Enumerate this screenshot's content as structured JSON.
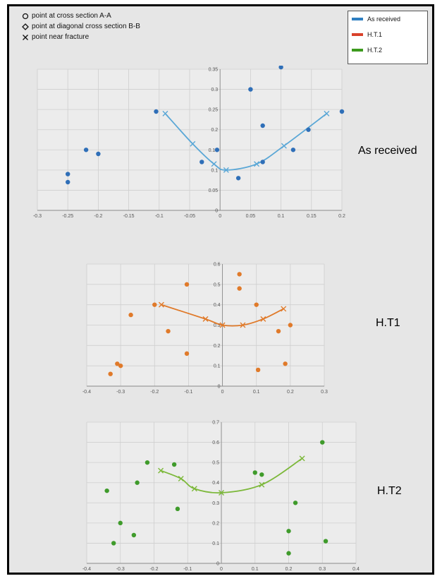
{
  "symbol_key": [
    {
      "glyph": "circle",
      "text": "point at cross section A-A"
    },
    {
      "glyph": "diamond",
      "text": "point at  diagonal cross section B-B"
    },
    {
      "glyph": "cross",
      "text": "point near fracture"
    }
  ],
  "legend": [
    {
      "label": "As received",
      "color": "#2f7fc1"
    },
    {
      "label": "H.T.1",
      "color": "#d9422b"
    },
    {
      "label": "H.T.2",
      "color": "#3d9a1e"
    }
  ],
  "chart_data": [
    {
      "type": "scatter",
      "side_label": "As received",
      "color": "#2f6fb8",
      "line_color": "#5aa7d6",
      "xlim": [
        -0.3,
        0.2
      ],
      "ylim": [
        0,
        0.35
      ],
      "x_ticks": [
        "-0.3",
        "-0.25",
        "-0.2",
        "-0.15",
        "-0.1",
        "-0.05",
        "0",
        "0.05",
        "0.1",
        "0.15",
        "0.2"
      ],
      "y_ticks": [
        "0",
        "0.05",
        "0.1",
        "0.15",
        "0.2",
        "0.25",
        "0.3",
        "0.35"
      ],
      "points": [
        {
          "x": -0.25,
          "y": 0.09
        },
        {
          "x": -0.25,
          "y": 0.07
        },
        {
          "x": -0.22,
          "y": 0.15
        },
        {
          "x": -0.2,
          "y": 0.14
        },
        {
          "x": -0.105,
          "y": 0.245
        },
        {
          "x": -0.03,
          "y": 0.12
        },
        {
          "x": -0.005,
          "y": 0.15
        },
        {
          "x": 0.03,
          "y": 0.08
        },
        {
          "x": 0.05,
          "y": 0.3
        },
        {
          "x": 0.07,
          "y": 0.21
        },
        {
          "x": 0.07,
          "y": 0.12
        },
        {
          "x": 0.1,
          "y": 0.355
        },
        {
          "x": 0.12,
          "y": 0.15
        },
        {
          "x": 0.145,
          "y": 0.2
        },
        {
          "x": 0.2,
          "y": 0.245
        }
      ],
      "fracture_curve": [
        {
          "x": -0.09,
          "y": 0.24
        },
        {
          "x": -0.045,
          "y": 0.165
        },
        {
          "x": -0.01,
          "y": 0.115
        },
        {
          "x": 0.01,
          "y": 0.1
        },
        {
          "x": 0.06,
          "y": 0.115
        },
        {
          "x": 0.105,
          "y": 0.16
        },
        {
          "x": 0.175,
          "y": 0.24
        }
      ]
    },
    {
      "type": "scatter",
      "side_label": "H.T1",
      "color": "#e07a2a",
      "line_color": "#e07a2a",
      "xlim": [
        -0.4,
        0.3
      ],
      "ylim": [
        0,
        0.6
      ],
      "x_ticks": [
        "-0.4",
        "-0.3",
        "-0.2",
        "-0.1",
        "0",
        "0.1",
        "0.2",
        "0.3"
      ],
      "y_ticks": [
        "0",
        "0.1",
        "0.2",
        "0.3",
        "0.4",
        "0.5",
        "0.6"
      ],
      "points": [
        {
          "x": -0.33,
          "y": 0.06
        },
        {
          "x": -0.31,
          "y": 0.11
        },
        {
          "x": -0.3,
          "y": 0.1
        },
        {
          "x": -0.27,
          "y": 0.35
        },
        {
          "x": -0.2,
          "y": 0.4
        },
        {
          "x": -0.16,
          "y": 0.27
        },
        {
          "x": -0.105,
          "y": 0.5
        },
        {
          "x": -0.105,
          "y": 0.16
        },
        {
          "x": 0.05,
          "y": 0.55
        },
        {
          "x": 0.05,
          "y": 0.48
        },
        {
          "x": 0.1,
          "y": 0.4
        },
        {
          "x": 0.105,
          "y": 0.08
        },
        {
          "x": 0.165,
          "y": 0.27
        },
        {
          "x": 0.185,
          "y": 0.11
        },
        {
          "x": 0.2,
          "y": 0.3
        }
      ],
      "fracture_curve": [
        {
          "x": -0.18,
          "y": 0.4
        },
        {
          "x": -0.05,
          "y": 0.33
        },
        {
          "x": 0.0,
          "y": 0.3
        },
        {
          "x": 0.06,
          "y": 0.3
        },
        {
          "x": 0.12,
          "y": 0.33
        },
        {
          "x": 0.18,
          "y": 0.38
        }
      ]
    },
    {
      "type": "scatter",
      "side_label": "H.T2",
      "color": "#3f9b2b",
      "line_color": "#7cb83a",
      "xlim": [
        -0.4,
        0.4
      ],
      "ylim": [
        0,
        0.7
      ],
      "x_ticks": [
        "-0.4",
        "-0.3",
        "-0.2",
        "-0.1",
        "0",
        "0.1",
        "0.2",
        "0.3",
        "0.4"
      ],
      "y_ticks": [
        "0",
        "0.1",
        "0.2",
        "0.3",
        "0.4",
        "0.5",
        "0.6",
        "0.7"
      ],
      "points": [
        {
          "x": -0.34,
          "y": 0.36
        },
        {
          "x": -0.32,
          "y": 0.1
        },
        {
          "x": -0.3,
          "y": 0.2
        },
        {
          "x": -0.26,
          "y": 0.14
        },
        {
          "x": -0.25,
          "y": 0.4
        },
        {
          "x": -0.22,
          "y": 0.5
        },
        {
          "x": -0.14,
          "y": 0.49
        },
        {
          "x": -0.13,
          "y": 0.27
        },
        {
          "x": 0.1,
          "y": 0.45
        },
        {
          "x": 0.12,
          "y": 0.44
        },
        {
          "x": 0.2,
          "y": 0.05
        },
        {
          "x": 0.2,
          "y": 0.16
        },
        {
          "x": 0.22,
          "y": 0.3
        },
        {
          "x": 0.3,
          "y": 0.6
        },
        {
          "x": 0.31,
          "y": 0.11
        }
      ],
      "fracture_curve": [
        {
          "x": -0.18,
          "y": 0.46
        },
        {
          "x": -0.12,
          "y": 0.42
        },
        {
          "x": -0.08,
          "y": 0.37
        },
        {
          "x": 0.0,
          "y": 0.35
        },
        {
          "x": 0.12,
          "y": 0.39
        },
        {
          "x": 0.24,
          "y": 0.52
        }
      ]
    }
  ]
}
